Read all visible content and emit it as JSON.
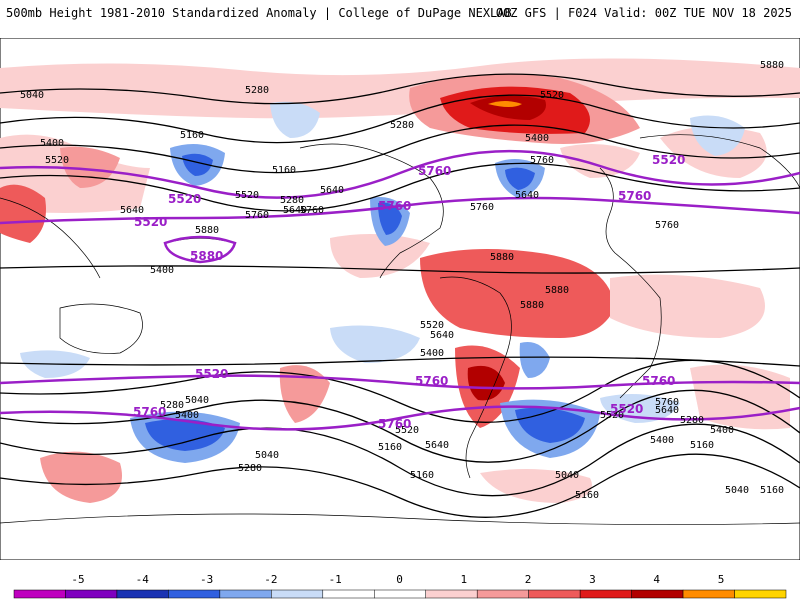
{
  "header": {
    "title_left": "500mb Height 1981-2010 Standardized Anomaly | College of DuPage NEXLAB",
    "title_right": "00Z GFS | F024 Valid: 00Z TUE NOV 18 2025"
  },
  "map": {
    "contour_labels_black": [
      "5040",
      "5280",
      "5160",
      "5280",
      "5400",
      "5520",
      "5640",
      "5760",
      "5520",
      "5400",
      "5160",
      "5640",
      "5760",
      "5280",
      "5880",
      "5400",
      "5520",
      "5640",
      "5760",
      "5880",
      "5880",
      "5880",
      "5640",
      "5760",
      "5760",
      "5880",
      "5640",
      "5520",
      "5400",
      "5160",
      "5280",
      "5040",
      "5040",
      "5280",
      "5400",
      "5520",
      "5640",
      "5160",
      "5040",
      "5160",
      "5400",
      "5520",
      "5640",
      "5760",
      "5280",
      "5160",
      "5040",
      "5160",
      "5400"
    ],
    "contour_labels_purple": [
      "5520",
      "5760",
      "5880",
      "5520",
      "5760",
      "5760",
      "5520",
      "5760",
      "5760",
      "5760",
      "5760",
      "5520",
      "5520"
    ],
    "colors": {
      "contour": "#000000",
      "highlight_contour": "#9a1fc7",
      "land": "#ffffff",
      "coast": "#000000"
    }
  },
  "colorbar": {
    "tick_labels": [
      "-5",
      "-4",
      "-3",
      "-2",
      "-1",
      "0",
      "1",
      "2",
      "3",
      "4",
      "5"
    ],
    "bins": [
      {
        "color": "#bf00bf"
      },
      {
        "color": "#7f00bf"
      },
      {
        "color": "#1a33b3"
      },
      {
        "color": "#3060e0"
      },
      {
        "color": "#7fa8ee"
      },
      {
        "color": "#c9dcf7"
      },
      {
        "color": "#ffffff"
      },
      {
        "color": "#ffffff"
      },
      {
        "color": "#fbd0d0"
      },
      {
        "color": "#f59a9a"
      },
      {
        "color": "#ee5a5a"
      },
      {
        "color": "#e01a1a"
      },
      {
        "color": "#b20000"
      },
      {
        "color": "#ff8c00"
      },
      {
        "color": "#ffd400"
      }
    ]
  }
}
